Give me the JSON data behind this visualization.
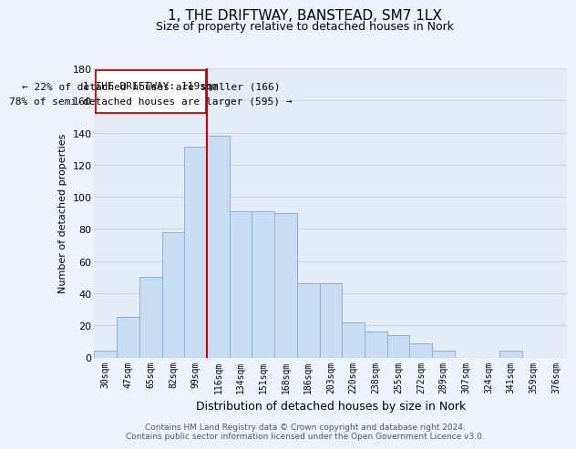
{
  "title": "1, THE DRIFTWAY, BANSTEAD, SM7 1LX",
  "subtitle": "Size of property relative to detached houses in Nork",
  "xlabel": "Distribution of detached houses by size in Nork",
  "ylabel": "Number of detached properties",
  "categories": [
    "30sqm",
    "47sqm",
    "65sqm",
    "82sqm",
    "99sqm",
    "116sqm",
    "134sqm",
    "151sqm",
    "168sqm",
    "186sqm",
    "203sqm",
    "220sqm",
    "238sqm",
    "255sqm",
    "272sqm",
    "289sqm",
    "307sqm",
    "324sqm",
    "341sqm",
    "359sqm",
    "376sqm"
  ],
  "values": [
    4,
    25,
    50,
    78,
    131,
    138,
    91,
    91,
    90,
    46,
    46,
    22,
    16,
    14,
    9,
    4,
    0,
    0,
    4,
    0,
    0
  ],
  "bar_color": "#c9ddf2",
  "bar_edge_color": "#8ab0d4",
  "ylim": [
    0,
    180
  ],
  "yticks": [
    0,
    20,
    40,
    60,
    80,
    100,
    120,
    140,
    160,
    180
  ],
  "property_line_color": "#cc0000",
  "annotation_line1": "1 THE DRIFTWAY: 119sqm",
  "annotation_line2": "← 22% of detached houses are smaller (166)",
  "annotation_line3": "78% of semi-detached houses are larger (595) →",
  "annotation_box_color": "#ffffff",
  "annotation_box_edge": "#cc0000",
  "footer_line1": "Contains HM Land Registry data © Crown copyright and database right 2024.",
  "footer_line2": "Contains public sector information licensed under the Open Government Licence v3.0.",
  "background_color": "#eef2fa",
  "plot_background": "#e4ecf7",
  "grid_color": "#d0d8e8"
}
